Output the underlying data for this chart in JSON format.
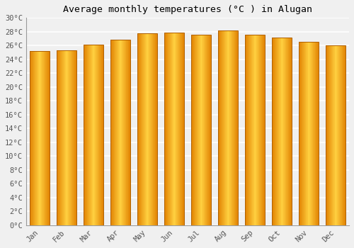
{
  "title": "Average monthly temperatures (°C ) in Alugan",
  "months": [
    "Jan",
    "Feb",
    "Mar",
    "Apr",
    "May",
    "Jun",
    "Jul",
    "Aug",
    "Sep",
    "Oct",
    "Nov",
    "Dec"
  ],
  "temperatures": [
    25.2,
    25.3,
    26.1,
    26.9,
    27.8,
    27.9,
    27.6,
    28.2,
    27.6,
    27.2,
    26.5,
    26.0
  ],
  "ylim": [
    0,
    30
  ],
  "yticks": [
    0,
    2,
    4,
    6,
    8,
    10,
    12,
    14,
    16,
    18,
    20,
    22,
    24,
    26,
    28,
    30
  ],
  "bar_color_center": "#FFD040",
  "bar_color_edge": "#E08000",
  "background_color": "#f0f0f0",
  "grid_color": "#ffffff",
  "title_fontsize": 9.5,
  "tick_fontsize": 7.5,
  "title_font": "monospace",
  "tick_font": "monospace"
}
